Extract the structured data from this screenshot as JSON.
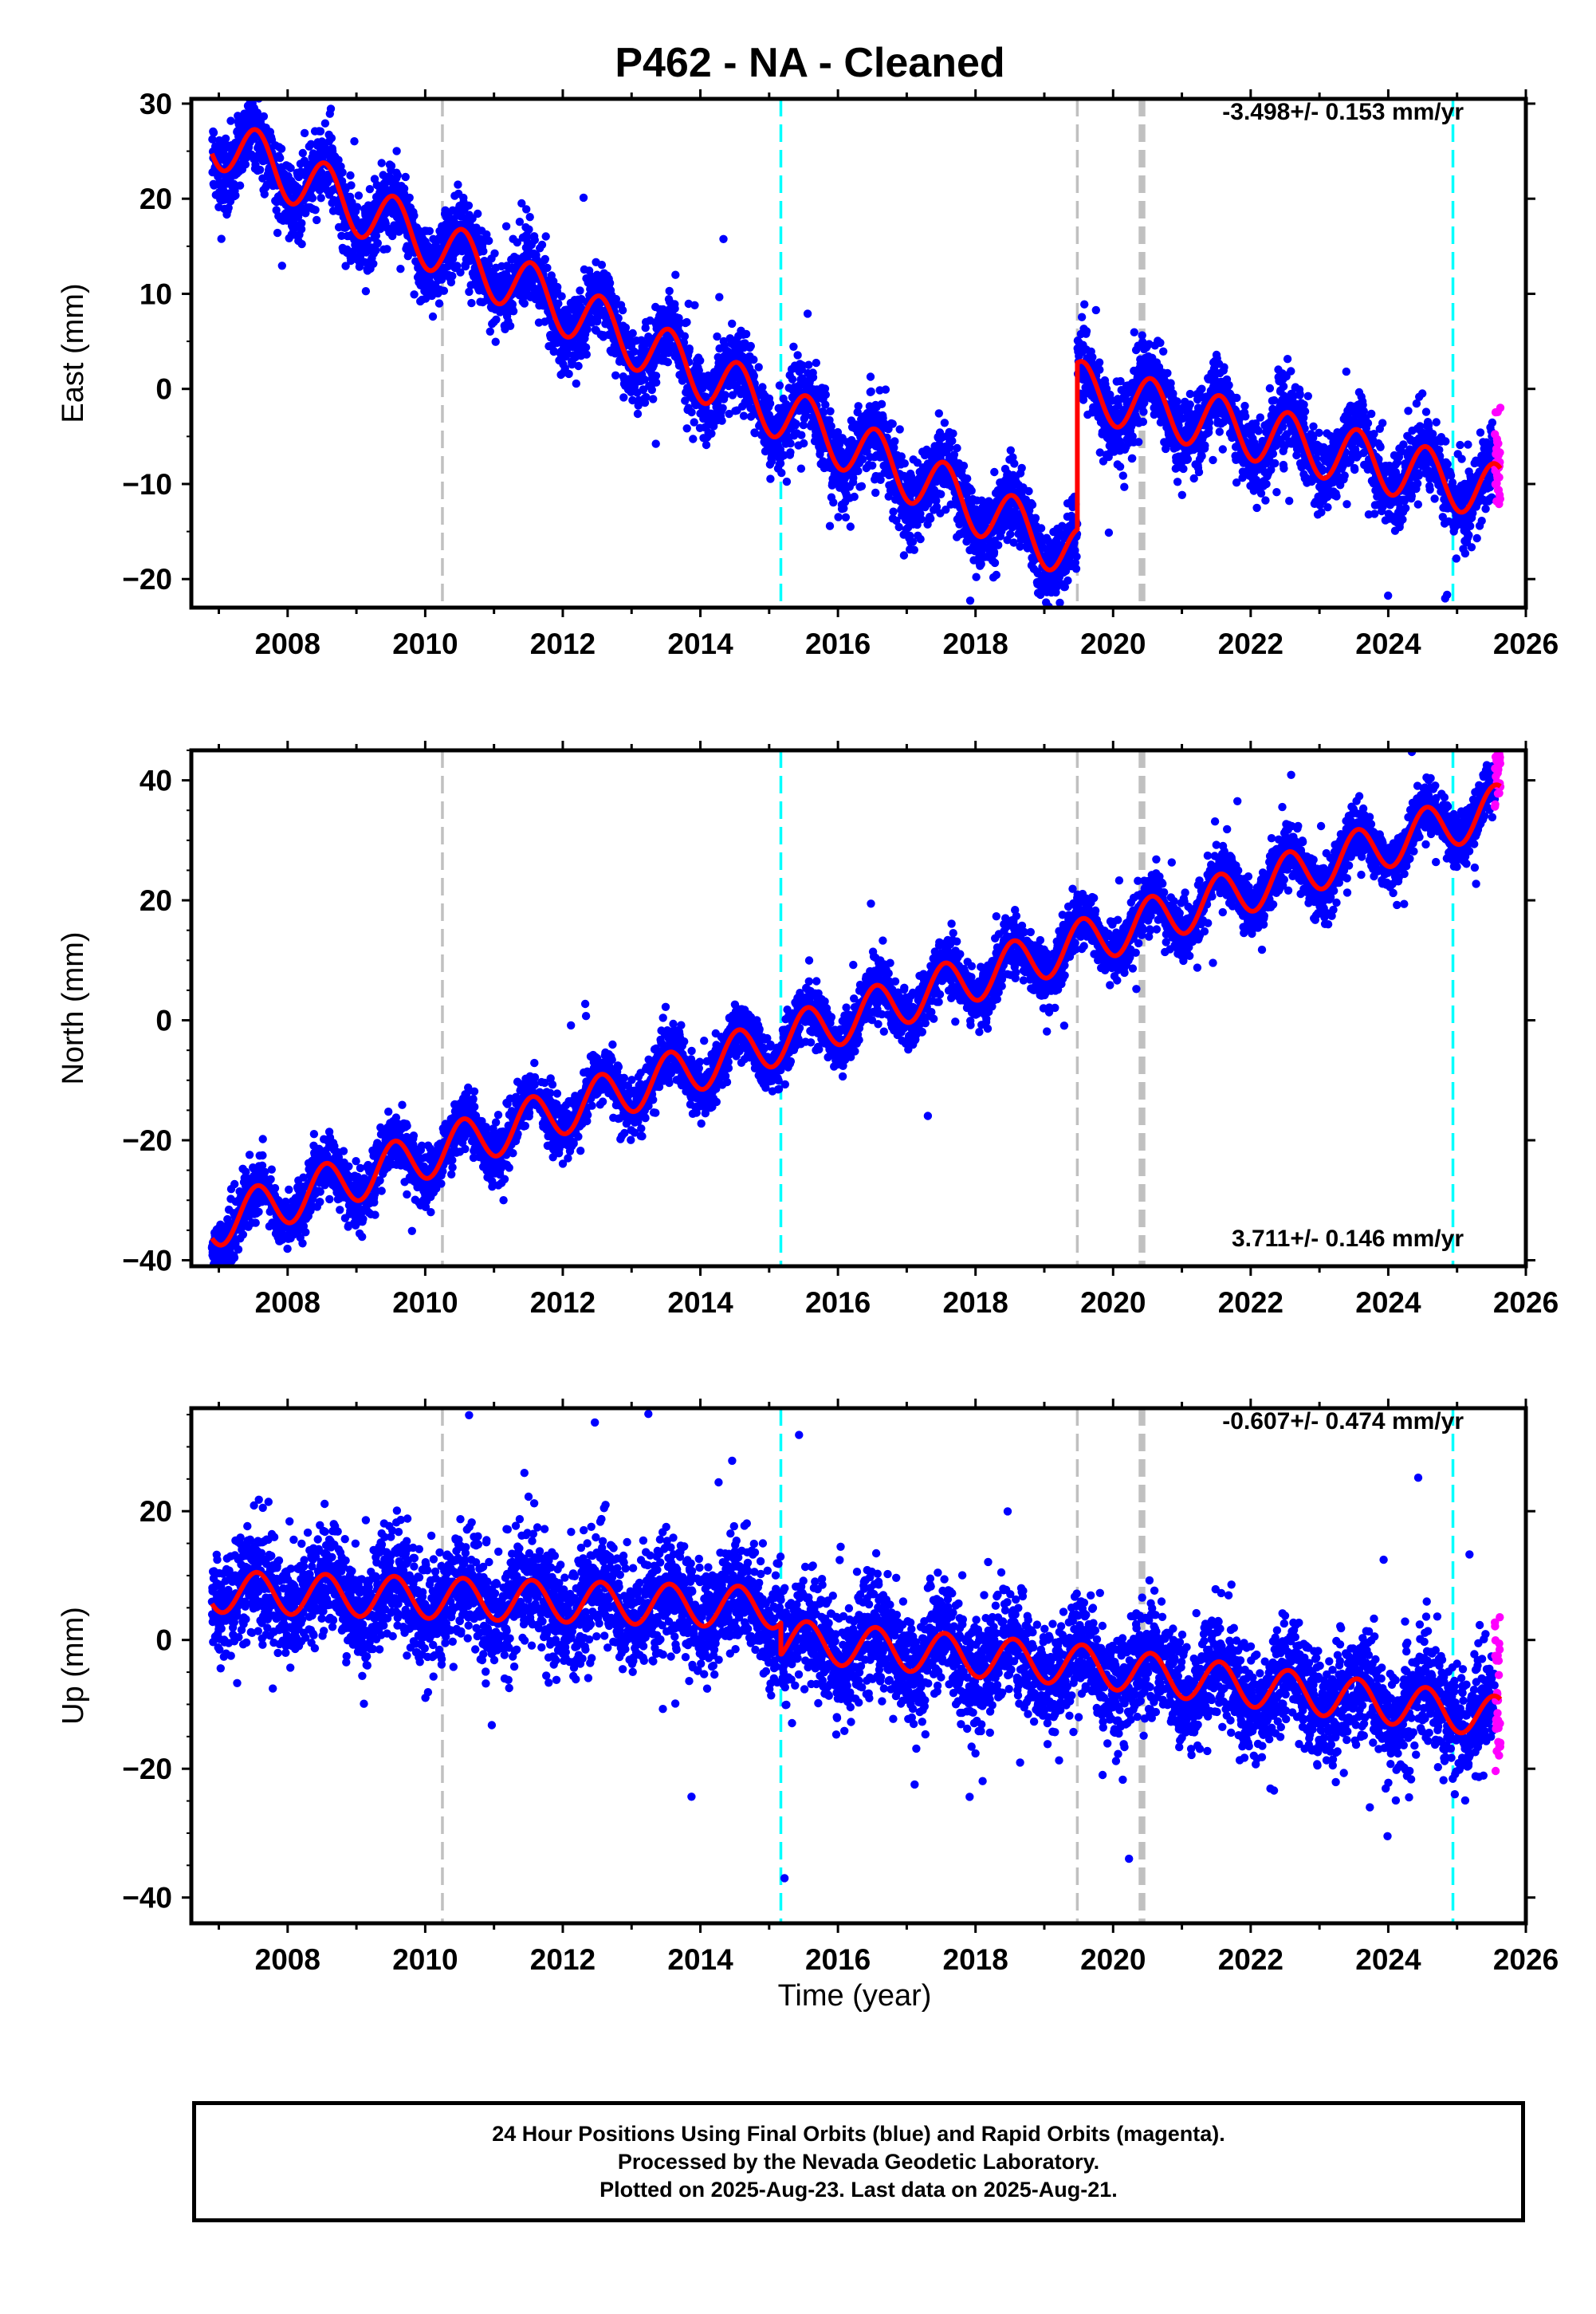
{
  "title": "P462  - NA - Cleaned",
  "xlabel": "Time (year)",
  "footer": {
    "line1": "24 Hour Positions Using Final Orbits (blue) and Rapid Orbits (magenta).",
    "line2": "Processed by the Nevada Geodetic Laboratory.",
    "line3": "Plotted on 2025-Aug-23. Last data on 2025-Aug-21."
  },
  "colors": {
    "final": "#0000ff",
    "rapid": "#ff00ff",
    "model": "#ff0000",
    "event_gray": "#c0c0c0",
    "event_cyan": "#00ffff"
  },
  "chart_data": [
    {
      "type": "scatter",
      "component": "East",
      "ylabel": "East (mm)",
      "rate_label": "-3.498+/- 0.153 mm/yr",
      "xlim": [
        2006.6,
        2026.0
      ],
      "ylim": [
        -23,
        30.5
      ],
      "yticks": [
        -20,
        -10,
        0,
        10,
        20,
        30
      ],
      "xticks": [
        2008,
        2010,
        2012,
        2014,
        2016,
        2018,
        2020,
        2022,
        2024,
        2026
      ],
      "data_start": 2006.9,
      "data_end": 2025.63,
      "rapid_start": 2025.55,
      "trend": {
        "x": [
          2006.9,
          2019.48,
          2025.63
        ],
        "y": [
          26.5,
          -17.5,
          -11.0
        ]
      },
      "offset": {
        "x": 2019.48,
        "before": -17.5,
        "after": 0.0
      },
      "seasonal_amplitude": 3.0,
      "scatter_sd": 2.0
    },
    {
      "type": "scatter",
      "component": "North",
      "ylabel": "North (mm)",
      "rate_label": "3.711+/- 0.146 mm/yr",
      "xlim": [
        2006.6,
        2026.0
      ],
      "ylim": [
        -41,
        45
      ],
      "yticks": [
        -40,
        -20,
        0,
        20,
        40
      ],
      "xticks": [
        2008,
        2010,
        2012,
        2014,
        2016,
        2018,
        2020,
        2022,
        2024,
        2026
      ],
      "data_start": 2006.9,
      "data_end": 2025.63,
      "rapid_start": 2025.55,
      "trend": {
        "x": [
          2006.9,
          2025.63
        ],
        "y": [
          -34.0,
          35.5
        ]
      },
      "seasonal_amplitude": 4.0,
      "scatter_sd": 2.3
    },
    {
      "type": "scatter",
      "component": "Up",
      "ylabel": "Up (mm)",
      "rate_label": "-0.607+/- 0.474 mm/yr",
      "xlim": [
        2006.6,
        2026.0
      ],
      "ylim": [
        -44,
        36
      ],
      "yticks": [
        -40,
        -20,
        0,
        20
      ],
      "xticks": [
        2008,
        2010,
        2012,
        2014,
        2016,
        2018,
        2020,
        2022,
        2024,
        2026
      ],
      "data_start": 2006.9,
      "data_end": 2025.63,
      "rapid_start": 2025.55,
      "trend": {
        "x": [
          2006.9,
          2015.17,
          2019.6,
          2025.63
        ],
        "y": [
          7.5,
          5.0,
          -4.0,
          -12.0
        ]
      },
      "offset": {
        "x": 2015.17,
        "before": 5.0,
        "after": 0.0
      },
      "seasonal_amplitude": 3.2,
      "scatter_sd": 4.3
    }
  ],
  "events": [
    {
      "year": 2010.25,
      "kind": "equipment",
      "color": "gray"
    },
    {
      "year": 2015.17,
      "kind": "equipment",
      "color": "cyan"
    },
    {
      "year": 2019.48,
      "kind": "equipment",
      "color": "gray"
    },
    {
      "year": 2020.4,
      "kind": "earthquake",
      "color": "gray"
    },
    {
      "year": 2020.44,
      "kind": "earthquake",
      "color": "gray"
    },
    {
      "year": 2024.94,
      "kind": "equipment",
      "color": "cyan"
    }
  ]
}
